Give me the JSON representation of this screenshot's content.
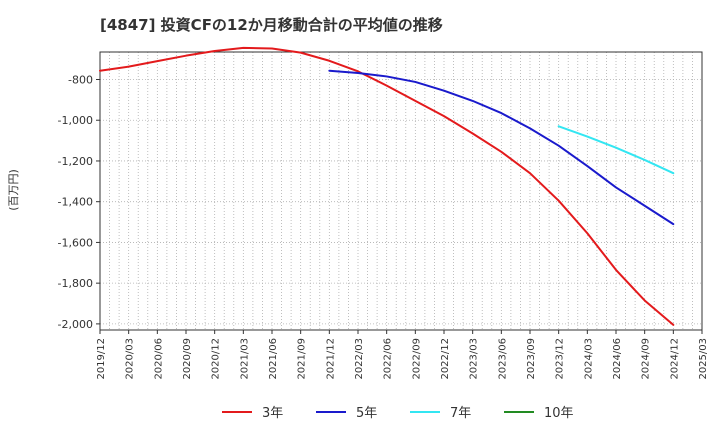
{
  "chart_data": {
    "type": "line",
    "title": "[4847]  投資CFの12か月移動合計の平均値の推移",
    "ylabel": "(百万円)",
    "xlabel": "",
    "ylim": [
      -2030,
      -665
    ],
    "yticks": [
      -800,
      -1000,
      -1200,
      -1400,
      -1600,
      -1800,
      -2000
    ],
    "ytick_labels": [
      "-800",
      "-1,000",
      "-1,200",
      "-1,400",
      "-1,600",
      "-1,800",
      "-2,000"
    ],
    "x_start": "2019/12",
    "x_end": "2025/03",
    "xtick_labels": [
      "2019/12",
      "2020/03",
      "2020/06",
      "2020/09",
      "2020/12",
      "2021/03",
      "2021/06",
      "2021/09",
      "2021/12",
      "2022/03",
      "2022/06",
      "2022/09",
      "2022/12",
      "2023/03",
      "2023/06",
      "2023/09",
      "2023/12",
      "2024/03",
      "2024/06",
      "2024/09",
      "2024/12",
      "2025/03"
    ],
    "grid": true,
    "legend_position": "bottom",
    "series": [
      {
        "name": "3年",
        "color": "#e31a1c",
        "points": [
          [
            "2019/12",
            -757
          ],
          [
            "2020/03",
            -737
          ],
          [
            "2020/06",
            -710
          ],
          [
            "2020/09",
            -683
          ],
          [
            "2020/12",
            -660
          ],
          [
            "2021/03",
            -645
          ],
          [
            "2021/06",
            -648
          ],
          [
            "2021/09",
            -668
          ],
          [
            "2021/12",
            -708
          ],
          [
            "2022/03",
            -760
          ],
          [
            "2022/06",
            -830
          ],
          [
            "2022/09",
            -905
          ],
          [
            "2022/12",
            -980
          ],
          [
            "2023/03",
            -1065
          ],
          [
            "2023/06",
            -1155
          ],
          [
            "2023/09",
            -1260
          ],
          [
            "2023/12",
            -1395
          ],
          [
            "2024/03",
            -1555
          ],
          [
            "2024/06",
            -1735
          ],
          [
            "2024/09",
            -1885
          ],
          [
            "2024/12",
            -2005
          ]
        ]
      },
      {
        "name": "5年",
        "color": "#1a1acc",
        "points": [
          [
            "2021/12",
            -757
          ],
          [
            "2022/03",
            -768
          ],
          [
            "2022/06",
            -785
          ],
          [
            "2022/09",
            -812
          ],
          [
            "2022/12",
            -855
          ],
          [
            "2023/03",
            -905
          ],
          [
            "2023/06",
            -965
          ],
          [
            "2023/09",
            -1040
          ],
          [
            "2023/12",
            -1125
          ],
          [
            "2024/03",
            -1225
          ],
          [
            "2024/06",
            -1330
          ],
          [
            "2024/09",
            -1420
          ],
          [
            "2024/12",
            -1510
          ]
        ]
      },
      {
        "name": "7年",
        "color": "#33e6f2",
        "points": [
          [
            "2023/12",
            -1030
          ],
          [
            "2024/03",
            -1080
          ],
          [
            "2024/06",
            -1135
          ],
          [
            "2024/09",
            -1195
          ],
          [
            "2024/12",
            -1260
          ]
        ]
      },
      {
        "name": "10年",
        "color": "#228b22",
        "points": []
      }
    ]
  }
}
